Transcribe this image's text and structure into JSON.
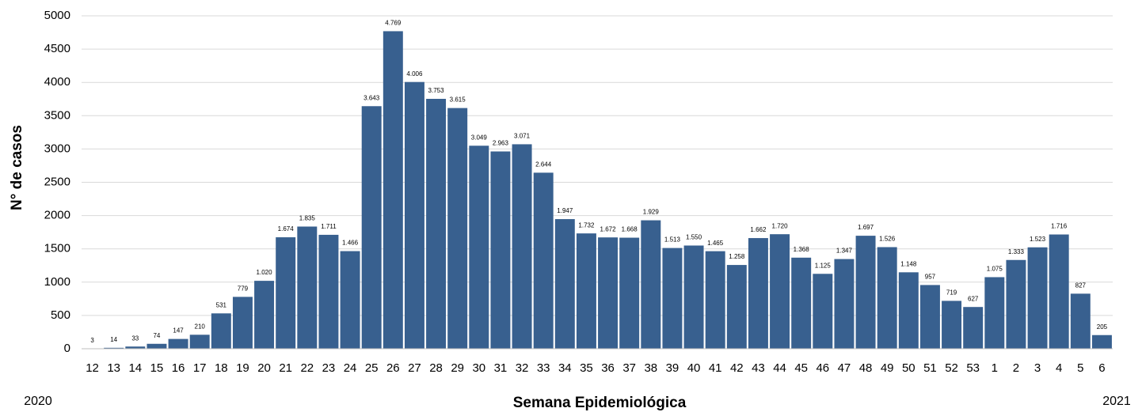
{
  "chart_data": {
    "type": "bar",
    "x_label": "Semana Epidemiológica",
    "y_label": "N° de casos",
    "annotations": [
      "2020",
      "2021"
    ],
    "categories": [
      "12",
      "13",
      "14",
      "15",
      "16",
      "17",
      "18",
      "19",
      "20",
      "21",
      "22",
      "23",
      "24",
      "25",
      "26",
      "27",
      "28",
      "29",
      "30",
      "31",
      "32",
      "33",
      "34",
      "35",
      "36",
      "37",
      "38",
      "39",
      "40",
      "41",
      "42",
      "43",
      "44",
      "45",
      "46",
      "47",
      "48",
      "49",
      "50",
      "51",
      "52",
      "53",
      "1",
      "2",
      "3",
      "4",
      "5",
      "6"
    ],
    "values": [
      3,
      14,
      33,
      74,
      147,
      210,
      531,
      779,
      1020,
      1674,
      1835,
      1711,
      1466,
      3643,
      4769,
      4006,
      3753,
      3615,
      3049,
      2963,
      3071,
      2644,
      1947,
      1732,
      1672,
      1668,
      1929,
      1513,
      1550,
      1465,
      1258,
      1662,
      1720,
      1368,
      1125,
      1347,
      1697,
      1526,
      1148,
      957,
      719,
      627,
      1075,
      1333,
      1523,
      1716,
      827,
      205
    ],
    "value_labels": [
      "3",
      "14",
      "33",
      "74",
      "147",
      "210",
      "531",
      "779",
      "1.020",
      "1.674",
      "1.835",
      "1.711",
      "1.466",
      "3.643",
      "4.769",
      "4.006",
      "3.753",
      "3.615",
      "3.049",
      "2.963",
      "3.071",
      "2.644",
      "1.947",
      "1.732",
      "1.672",
      "1.668",
      "1.929",
      "1.513",
      "1.550",
      "1.465",
      "1.258",
      "1.662",
      "1.720",
      "1.368",
      "1.125",
      "1.347",
      "1.697",
      "1.526",
      "1.148",
      "957",
      "719",
      "627",
      "1.075",
      "1.333",
      "1.523",
      "1.716",
      "827",
      "205"
    ],
    "color": "#38608f",
    "ylim": [
      0,
      5000
    ],
    "yticks": [
      0,
      500,
      1000,
      1500,
      2000,
      2500,
      3000,
      3500,
      4000,
      4500,
      5000
    ],
    "grid": true
  }
}
